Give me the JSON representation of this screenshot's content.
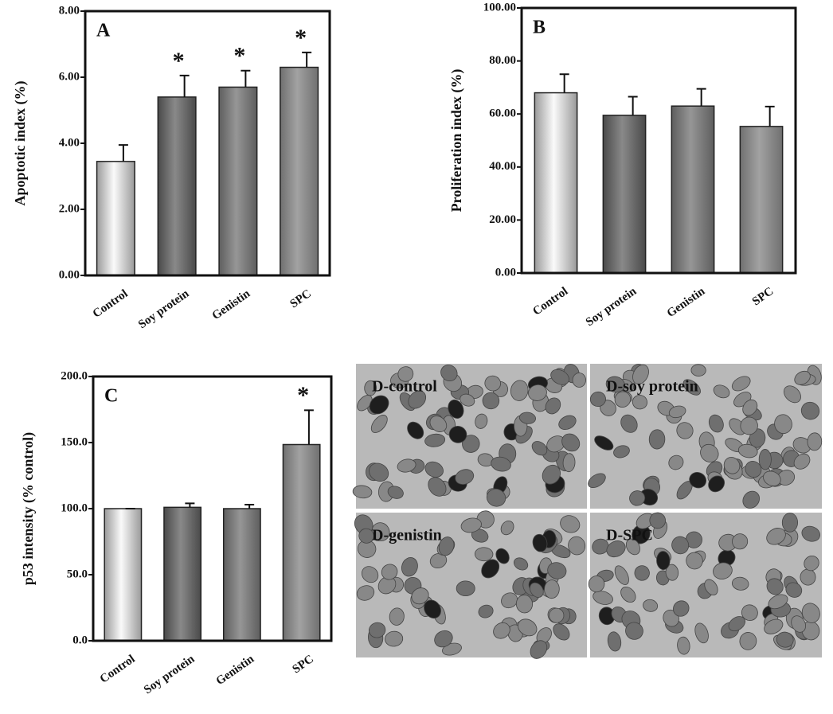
{
  "chart_data": [
    {
      "type": "bar",
      "panel": "A",
      "ylabel": "Apoptotic index (%)",
      "categories": [
        "Control",
        "Soy protein",
        "Genistin",
        "SPC"
      ],
      "values": [
        3.45,
        5.4,
        5.7,
        6.3
      ],
      "errors": [
        0.5,
        0.65,
        0.5,
        0.45
      ],
      "markers": [
        null,
        "*",
        "*",
        "*"
      ],
      "colors": [
        "#9a9a9a",
        "#4a4a4a",
        "#5e5e5e",
        "#707070"
      ],
      "ylim": [
        0,
        8
      ],
      "yticks": [
        {
          "value": 0,
          "label": "0.00"
        },
        {
          "value": 2,
          "label": "2.00"
        },
        {
          "value": 4,
          "label": "4.00"
        },
        {
          "value": 6,
          "label": "6.00"
        },
        {
          "value": 8,
          "label": "8.00"
        }
      ]
    },
    {
      "type": "bar",
      "panel": "B",
      "ylabel": "Proliferation index (%)",
      "categories": [
        "Control",
        "Soy protein",
        "Genistin",
        "SPC"
      ],
      "values": [
        68,
        59.5,
        63,
        55.3
      ],
      "errors": [
        7,
        7,
        6.5,
        7.5
      ],
      "markers": [
        null,
        null,
        null,
        null
      ],
      "colors": [
        "#9a9a9a",
        "#4a4a4a",
        "#5e5e5e",
        "#707070"
      ],
      "ylim": [
        0,
        100
      ],
      "yticks": [
        {
          "value": 0,
          "label": "0.00"
        },
        {
          "value": 20,
          "label": "20.00"
        },
        {
          "value": 40,
          "label": "40.00"
        },
        {
          "value": 60,
          "label": "60.00"
        },
        {
          "value": 80,
          "label": "80.00"
        },
        {
          "value": 100,
          "label": "100.00"
        }
      ]
    },
    {
      "type": "bar",
      "panel": "C",
      "ylabel": "p53 intensity (% control)",
      "categories": [
        "Control",
        "Soy protein",
        "Genistin",
        "SPC"
      ],
      "values": [
        100,
        101,
        100,
        148.5
      ],
      "errors": [
        0,
        3,
        3,
        26
      ],
      "markers": [
        null,
        null,
        null,
        "*"
      ],
      "colors": [
        "#9a9a9a",
        "#4a4a4a",
        "#5e5e5e",
        "#707070"
      ],
      "ylim": [
        0,
        200
      ],
      "yticks": [
        {
          "value": 0,
          "label": "0.0"
        },
        {
          "value": 50,
          "label": "50.0"
        },
        {
          "value": 100,
          "label": "100.0"
        },
        {
          "value": 150,
          "label": "150.0"
        },
        {
          "value": 200,
          "label": "200.0"
        }
      ]
    }
  ],
  "image_panels": {
    "labels": [
      "D-control",
      "D-soy protein",
      "D-genistin",
      "D-SPC"
    ]
  }
}
